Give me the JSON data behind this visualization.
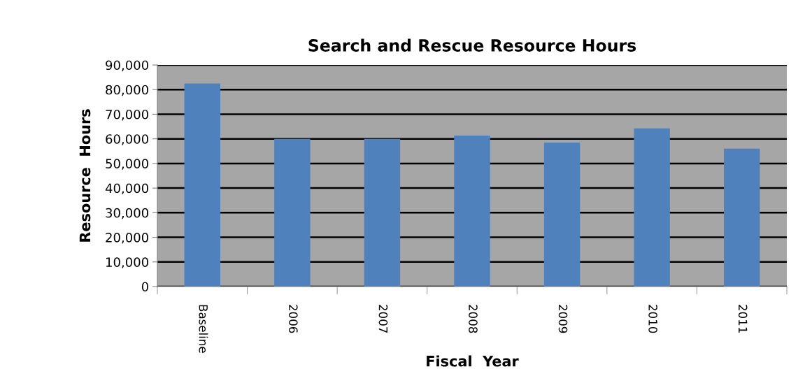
{
  "chart_data": {
    "type": "bar",
    "title": "Search and Rescue Resource Hours",
    "xlabel": "Fiscal  Year",
    "ylabel": "Resource  Hours",
    "categories": [
      "Baseline",
      "2006",
      "2007",
      "2008",
      "2009",
      "2010",
      "2011"
    ],
    "series": [
      {
        "color": "#4f81bd",
        "values": [
          82500,
          60000,
          60000,
          61300,
          58500,
          64200,
          56000
        ]
      }
    ],
    "ylim": [
      0,
      90000
    ],
    "yticks": [
      {
        "value": 0,
        "label": "0"
      },
      {
        "value": 10000,
        "label": "10,000"
      },
      {
        "value": 20000,
        "label": "20,000"
      },
      {
        "value": 30000,
        "label": "30,000"
      },
      {
        "value": 40000,
        "label": "40,000"
      },
      {
        "value": 50000,
        "label": "50,000"
      },
      {
        "value": 60000,
        "label": "60,000"
      },
      {
        "value": 70000,
        "label": "70,000"
      },
      {
        "value": 80000,
        "label": "80,000"
      },
      {
        "value": 90000,
        "label": "90,000"
      }
    ],
    "grid": "y",
    "legend": false
  }
}
